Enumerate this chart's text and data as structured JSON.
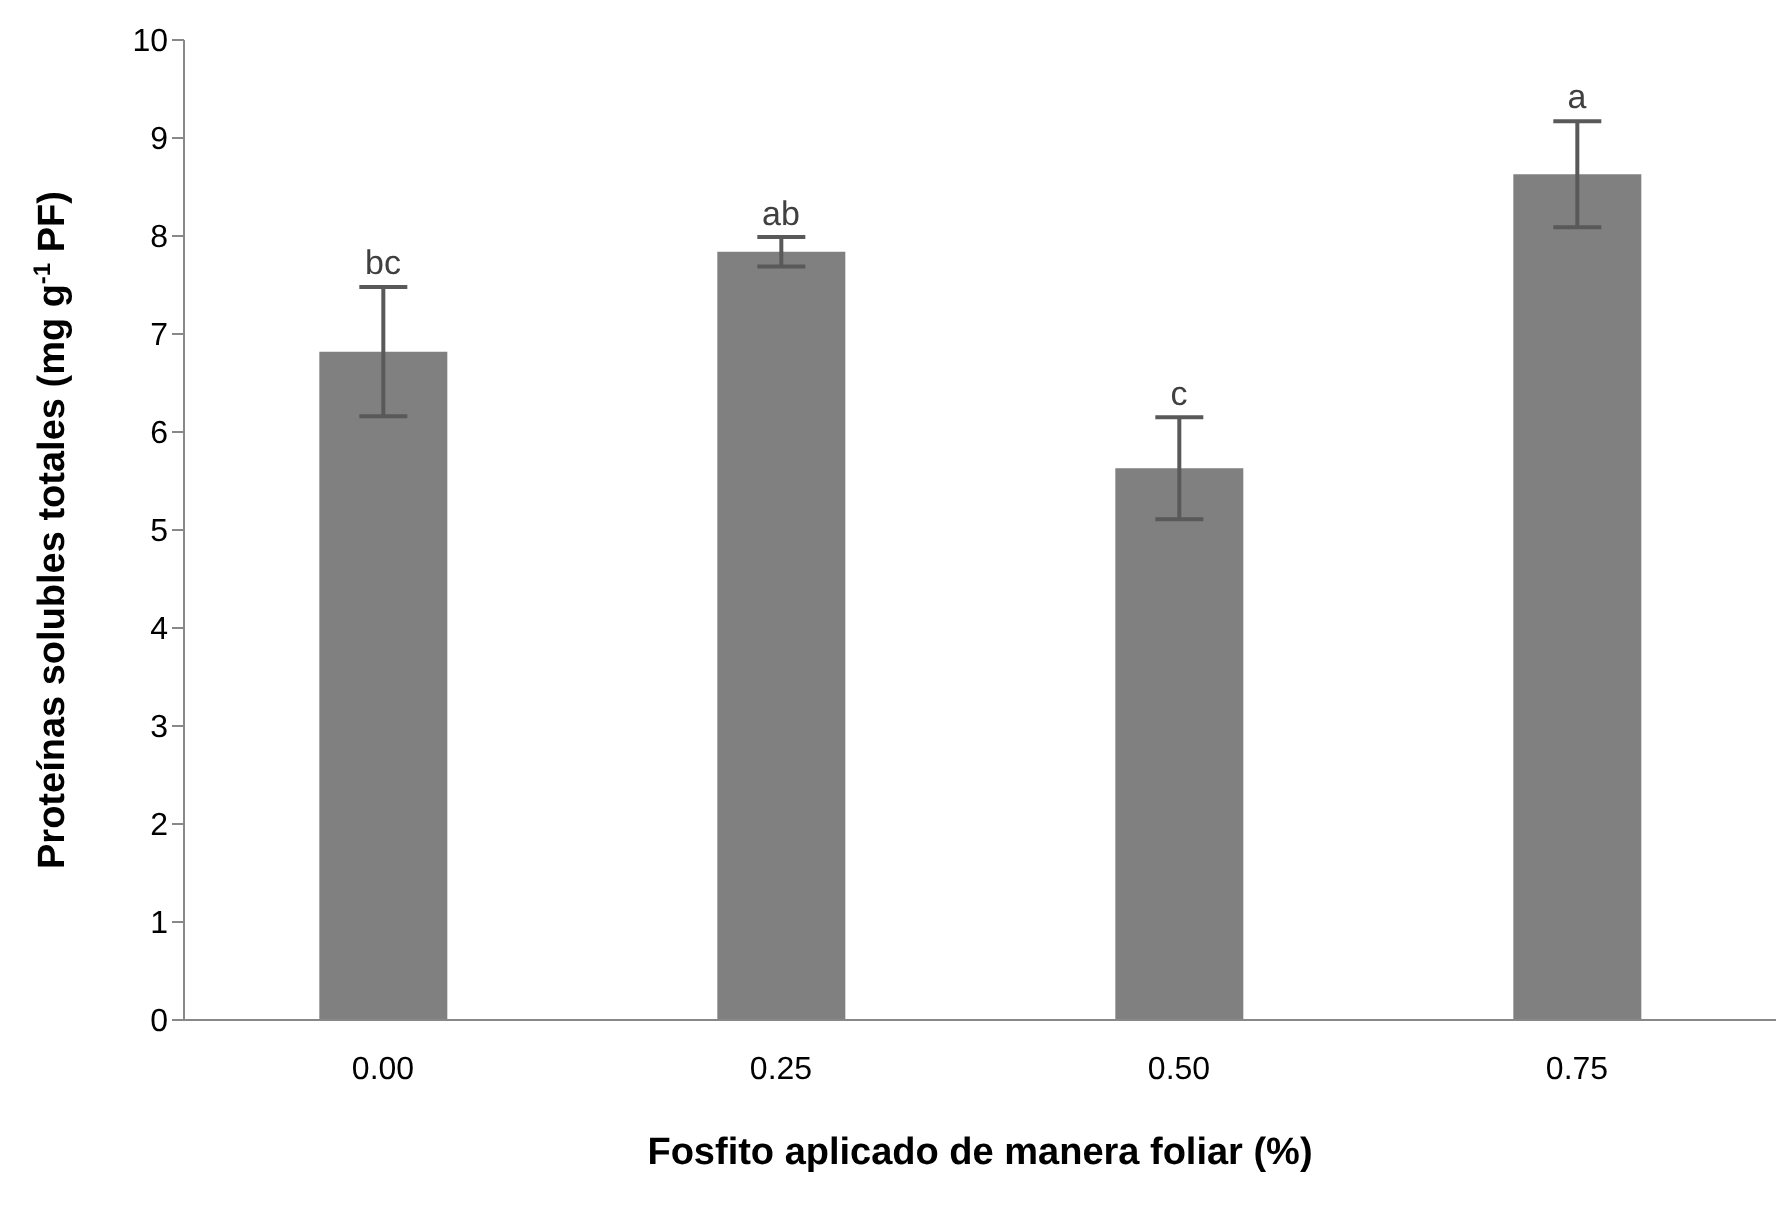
{
  "chart_data": {
    "type": "bar",
    "xlabel": "Fosfito aplicado de manera foliar (%)",
    "ylabel": "Proteínas solubles totales (mg g$^{-1}$ PF)",
    "categories": [
      "0.00",
      "0.25",
      "0.50",
      "0.75"
    ],
    "values": [
      6.82,
      7.84,
      5.63,
      8.63
    ],
    "errors": [
      0.66,
      0.15,
      0.52,
      0.54
    ],
    "color": "#808080",
    "ylim": [
      0,
      10
    ],
    "yticks": [
      0,
      1,
      2,
      3,
      4,
      5,
      6,
      7,
      8,
      9,
      10
    ],
    "grid": false,
    "annotations": [
      {
        "text": "bc",
        "x": "0.00",
        "y": 7.49
      },
      {
        "text": "ab",
        "x": "0.25",
        "y": 7.99
      },
      {
        "text": "c",
        "x": "0.50",
        "y": 6.15
      },
      {
        "text": "a",
        "x": "0.75",
        "y": 9.18
      }
    ]
  }
}
